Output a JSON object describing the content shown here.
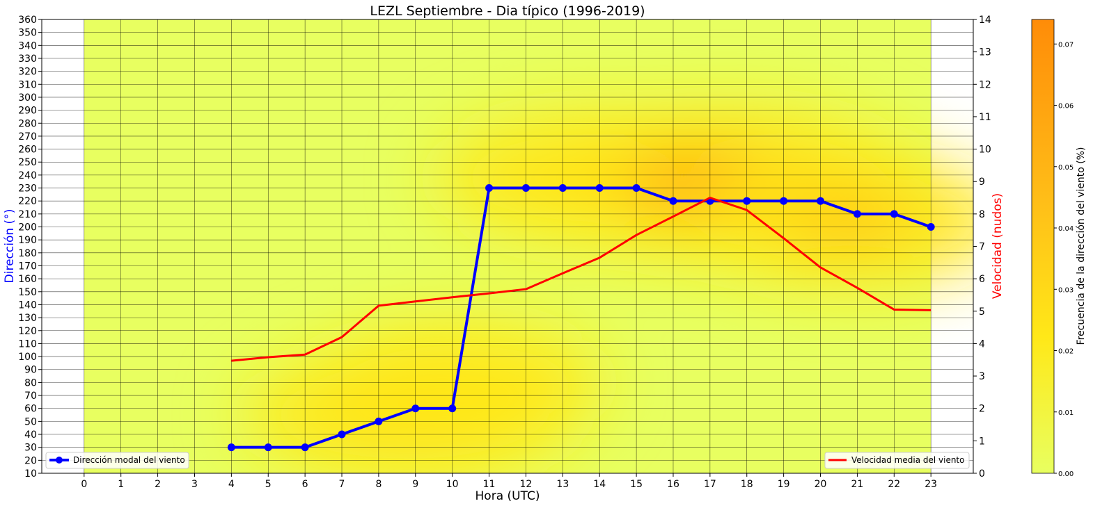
{
  "chart_data": {
    "type": "line",
    "title": "LEZL Septiembre - Dia típico (1996-2019)",
    "xlabel": "Hora (UTC)",
    "ylabel_left": "Dirección  (°)",
    "ylabel_right": "Velocidad (nudos)",
    "colorbar_label": "Frecuencia de la dirección del viento (%)",
    "x_ticks": [
      0,
      1,
      2,
      3,
      4,
      5,
      6,
      7,
      8,
      9,
      10,
      11,
      12,
      13,
      14,
      15,
      16,
      17,
      18,
      19,
      20,
      21,
      22,
      23
    ],
    "x_range": [
      -1.15,
      24.15
    ],
    "y_left_ticks": [
      10,
      20,
      30,
      40,
      50,
      60,
      70,
      80,
      90,
      100,
      110,
      120,
      130,
      140,
      150,
      160,
      170,
      180,
      190,
      200,
      210,
      220,
      230,
      240,
      250,
      260,
      270,
      280,
      290,
      300,
      310,
      320,
      330,
      340,
      350,
      360
    ],
    "y_left_range": [
      10,
      360
    ],
    "y_right_ticks": [
      0,
      1,
      2,
      3,
      4,
      5,
      6,
      7,
      8,
      9,
      10,
      11,
      12,
      13,
      14
    ],
    "y_right_range": [
      0,
      14
    ],
    "colorbar_ticks": [
      "0.00",
      "0.01",
      "0.02",
      "0.03",
      "0.04",
      "0.05",
      "0.06",
      "0.07"
    ],
    "colorbar_range": [
      0,
      0.074
    ],
    "grid": true,
    "legend_left_position": "lower-left",
    "legend_right_position": "lower-right",
    "series": [
      {
        "name": "Dirección modal del viento",
        "axis": "left",
        "color": "#0000ff",
        "marker": "circle",
        "x": [
          4,
          5,
          6,
          7,
          8,
          9,
          10,
          11,
          12,
          13,
          14,
          15,
          16,
          17,
          18,
          19,
          20,
          21,
          22,
          23
        ],
        "values": [
          30,
          30,
          30,
          40,
          50,
          60,
          60,
          230,
          230,
          230,
          230,
          230,
          220,
          220,
          220,
          220,
          220,
          210,
          210,
          200
        ]
      },
      {
        "name": "Velocidad media del viento",
        "axis": "right",
        "color": "#ff0000",
        "marker": "none",
        "x": [
          4,
          5,
          6,
          7,
          8,
          9,
          10,
          11,
          12,
          13,
          14,
          15,
          16,
          17,
          18,
          19,
          20,
          21,
          22,
          23
        ],
        "values": [
          3.47,
          3.58,
          3.66,
          4.2,
          5.17,
          5.3,
          5.43,
          5.55,
          5.68,
          6.17,
          6.65,
          7.35,
          7.92,
          8.5,
          8.12,
          7.25,
          6.35,
          5.72,
          5.05,
          5.03
        ]
      }
    ],
    "heatmap": {
      "colors": {
        "low": "#e8ff60",
        "mid": "#ffe818",
        "high": "#ff8c08"
      },
      "hotspots": [
        {
          "x": 8.8,
          "y": 55,
          "value": 0.048
        },
        {
          "x": 10.2,
          "y": 80,
          "value": 0.03
        },
        {
          "x": 14.0,
          "y": 238,
          "value": 0.048
        },
        {
          "x": 17.5,
          "y": 233,
          "value": 0.074
        },
        {
          "x": 20.8,
          "y": 205,
          "value": 0.045
        }
      ]
    }
  }
}
